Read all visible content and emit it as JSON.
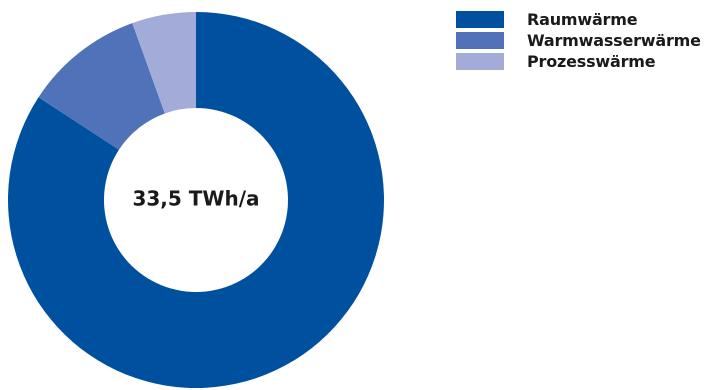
{
  "chart_data": {
    "type": "pie",
    "donut": true,
    "center_label": "33,5 TWh/a",
    "categories": [
      "Raumwärme",
      "Warmwasserwärme",
      "Prozesswärme"
    ],
    "values": [
      84.2,
      10.3,
      5.5
    ],
    "colors": [
      "#0050a0",
      "#4f72b8",
      "#a3acd9"
    ],
    "legend_position": "top-right"
  }
}
